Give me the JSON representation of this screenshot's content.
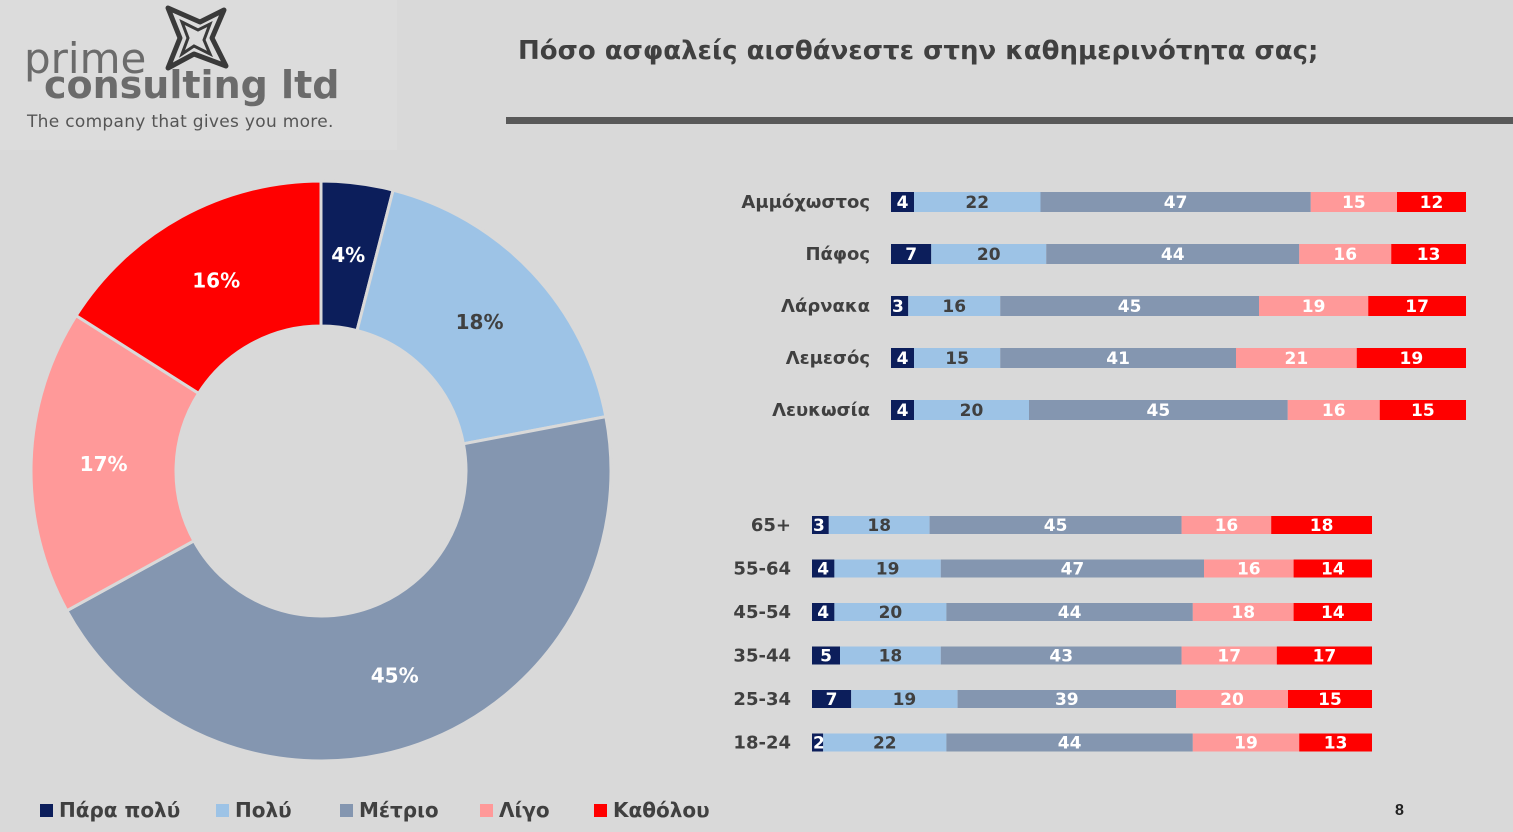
{
  "logo": {
    "line1": "prime",
    "line2": "consulting ltd",
    "tagline": "The company that gives you more."
  },
  "title": "Πόσο ασφαλείς αισθάνεστε στην καθημερινότητα σας;",
  "page_number": "8",
  "colors": {
    "Πάρα πολύ": "#0c1e5b",
    "Πολύ": "#9dc3e6",
    "Μέτριο": "#8496b0",
    "Λίγο": "#ff9999",
    "Καθόλου": "#ff0000",
    "background": "#d9d9d9"
  },
  "legend": [
    "Πάρα πολύ",
    "Πολύ",
    "Μέτριο",
    "Λίγο",
    "Καθόλου"
  ],
  "chart_data": [
    {
      "type": "pie",
      "variant": "donut",
      "categories": [
        "Πάρα πολύ",
        "Πολύ",
        "Μέτριο",
        "Λίγο",
        "Καθόλου"
      ],
      "values": [
        4,
        18,
        45,
        17,
        16
      ],
      "labels": [
        "4%",
        "18%",
        "45%",
        "17%",
        "16%"
      ]
    },
    {
      "type": "bar",
      "orientation": "horizontal",
      "stacked": true,
      "group": "district",
      "categories": [
        "Αμμόχωστος",
        "Πάφος",
        "Λάρνακα",
        "Λεμεσός",
        "Λευκωσία"
      ],
      "series": [
        {
          "name": "Πάρα πολύ",
          "values": [
            4,
            7,
            3,
            4,
            4
          ]
        },
        {
          "name": "Πολύ",
          "values": [
            22,
            20,
            16,
            15,
            20
          ]
        },
        {
          "name": "Μέτριο",
          "values": [
            47,
            44,
            45,
            41,
            45
          ]
        },
        {
          "name": "Λίγο",
          "values": [
            15,
            16,
            19,
            21,
            16
          ]
        },
        {
          "name": "Καθόλου",
          "values": [
            12,
            13,
            17,
            19,
            15
          ]
        }
      ]
    },
    {
      "type": "bar",
      "orientation": "horizontal",
      "stacked": true,
      "group": "age",
      "categories": [
        "65+",
        "55-64",
        "45-54",
        "35-44",
        "25-34",
        "18-24"
      ],
      "series": [
        {
          "name": "Πάρα πολύ",
          "values": [
            3,
            4,
            4,
            5,
            7,
            2
          ]
        },
        {
          "name": "Πολύ",
          "values": [
            18,
            19,
            20,
            18,
            19,
            22
          ]
        },
        {
          "name": "Μέτριο",
          "values": [
            45,
            47,
            44,
            43,
            39,
            44
          ]
        },
        {
          "name": "Λίγο",
          "values": [
            16,
            16,
            18,
            17,
            20,
            19
          ]
        },
        {
          "name": "Καθόλου",
          "values": [
            18,
            14,
            14,
            17,
            15,
            13
          ]
        }
      ]
    }
  ]
}
